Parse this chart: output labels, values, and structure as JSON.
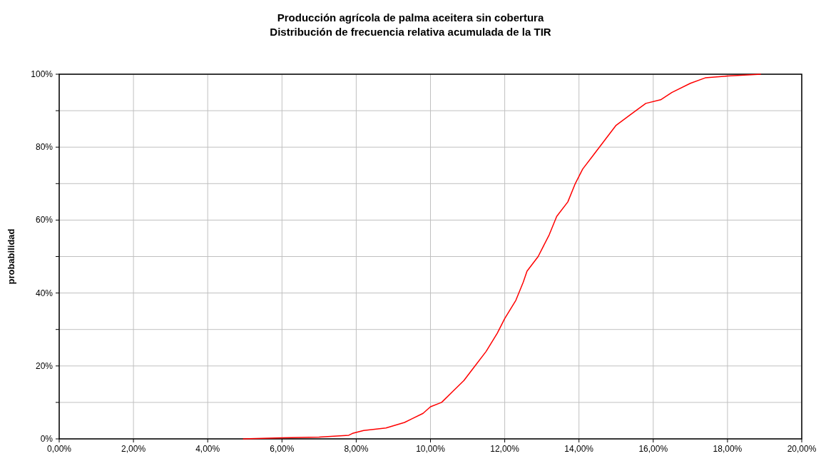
{
  "chart_data": {
    "type": "line",
    "title": "Producción agrícola de palma aceitera sin cobertura",
    "subtitle": "Distribución de frecuencia relativa acumulada de la TIR",
    "ylabel": "probabilidad",
    "x": [
      4.95,
      6.0,
      7.0,
      7.8,
      7.9,
      8.2,
      8.8,
      9.3,
      9.5,
      9.8,
      10.0,
      10.3,
      10.6,
      10.9,
      11.2,
      11.5,
      11.8,
      12.0,
      12.3,
      12.5,
      12.6,
      12.9,
      13.2,
      13.4,
      13.7,
      13.9,
      14.1,
      14.4,
      14.7,
      15.0,
      15.4,
      15.8,
      16.2,
      16.5,
      17.0,
      17.4,
      18.0,
      18.9
    ],
    "series": [
      {
        "color": "#ff0000",
        "values": [
          0,
          0.3,
          0.5,
          1,
          1.5,
          2.3,
          3,
          4.5,
          5.5,
          7,
          8.8,
          10,
          13,
          16,
          20,
          24,
          29,
          33,
          38,
          43,
          46,
          50,
          56,
          61,
          65,
          70,
          74,
          78,
          82,
          86,
          89,
          92,
          93,
          95,
          97.5,
          99,
          99.5,
          100
        ]
      }
    ],
    "xlim": [
      0,
      20
    ],
    "xticks": [
      {
        "value": 0,
        "label": "0,00%"
      },
      {
        "value": 2,
        "label": "2,00%"
      },
      {
        "value": 4,
        "label": "4,00%"
      },
      {
        "value": 6,
        "label": "6,00%"
      },
      {
        "value": 8,
        "label": "8,00%"
      },
      {
        "value": 10,
        "label": "10,00%"
      },
      {
        "value": 12,
        "label": "12,00%"
      },
      {
        "value": 14,
        "label": "14,00%"
      },
      {
        "value": 16,
        "label": "16,00%"
      },
      {
        "value": 18,
        "label": "18,00%"
      },
      {
        "value": 20,
        "label": "20,00%"
      }
    ],
    "ylim": [
      0,
      100
    ],
    "yticks": [
      {
        "value": 0,
        "label": "0%"
      },
      {
        "value": 10,
        "label": null
      },
      {
        "value": 20,
        "label": "20%"
      },
      {
        "value": 30,
        "label": null
      },
      {
        "value": 40,
        "label": "40%"
      },
      {
        "value": 50,
        "label": null
      },
      {
        "value": 60,
        "label": "60%"
      },
      {
        "value": 70,
        "label": null
      },
      {
        "value": 80,
        "label": "80%"
      },
      {
        "value": 90,
        "label": null
      },
      {
        "value": 100,
        "label": "100%"
      }
    ],
    "grid": true,
    "line_style": "solid"
  }
}
